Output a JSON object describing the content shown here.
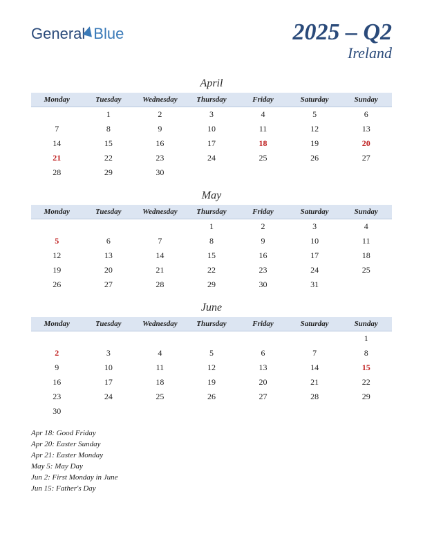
{
  "logo": {
    "part1": "General",
    "part2": "Blue"
  },
  "title": "2025 – Q2",
  "subtitle": "Ireland",
  "day_headers": [
    "Monday",
    "Tuesday",
    "Wednesday",
    "Thursday",
    "Friday",
    "Saturday",
    "Sunday"
  ],
  "colors": {
    "header_bg": "#dce5f2",
    "title_color": "#2a4a7a",
    "holiday_color": "#c02020",
    "text_color": "#222222"
  },
  "months": [
    {
      "name": "April",
      "weeks": [
        [
          null,
          1,
          2,
          3,
          4,
          5,
          6
        ],
        [
          7,
          8,
          9,
          10,
          11,
          12,
          13
        ],
        [
          14,
          15,
          16,
          17,
          18,
          19,
          20
        ],
        [
          21,
          22,
          23,
          24,
          25,
          26,
          27
        ],
        [
          28,
          29,
          30,
          null,
          null,
          null,
          null
        ]
      ],
      "holidays_days": [
        18,
        20,
        21
      ]
    },
    {
      "name": "May",
      "weeks": [
        [
          null,
          null,
          null,
          1,
          2,
          3,
          4
        ],
        [
          5,
          6,
          7,
          8,
          9,
          10,
          11
        ],
        [
          12,
          13,
          14,
          15,
          16,
          17,
          18
        ],
        [
          19,
          20,
          21,
          22,
          23,
          24,
          25
        ],
        [
          26,
          27,
          28,
          29,
          30,
          31,
          null
        ]
      ],
      "holidays_days": [
        5
      ]
    },
    {
      "name": "June",
      "weeks": [
        [
          null,
          null,
          null,
          null,
          null,
          null,
          1
        ],
        [
          2,
          3,
          4,
          5,
          6,
          7,
          8
        ],
        [
          9,
          10,
          11,
          12,
          13,
          14,
          15
        ],
        [
          16,
          17,
          18,
          19,
          20,
          21,
          22
        ],
        [
          23,
          24,
          25,
          26,
          27,
          28,
          29
        ],
        [
          30,
          null,
          null,
          null,
          null,
          null,
          null
        ]
      ],
      "holidays_days": [
        2,
        15
      ]
    }
  ],
  "holiday_list": [
    "Apr 18: Good Friday",
    "Apr 20: Easter Sunday",
    "Apr 21: Easter Monday",
    "May 5: May Day",
    "Jun 2: First Monday in June",
    "Jun 15: Father's Day"
  ]
}
